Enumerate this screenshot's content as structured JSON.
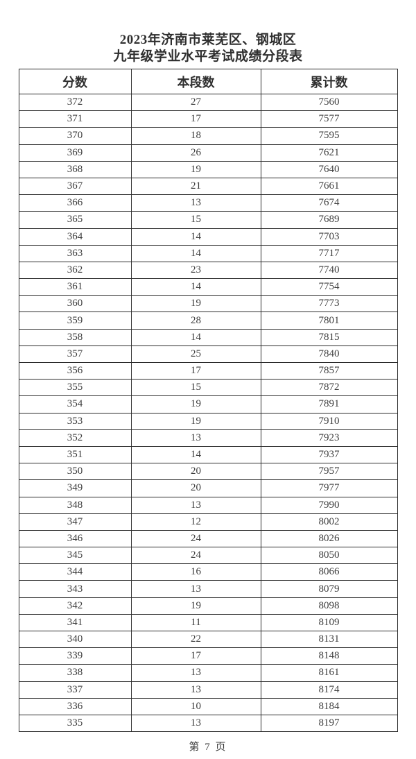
{
  "title": {
    "line1": "2023年济南市莱芜区、钢城区",
    "line2": "九年级学业水平考试成绩分段表"
  },
  "table": {
    "headers": [
      "分数",
      "本段数",
      "累计数"
    ],
    "rows": [
      [
        "372",
        "27",
        "7560"
      ],
      [
        "371",
        "17",
        "7577"
      ],
      [
        "370",
        "18",
        "7595"
      ],
      [
        "369",
        "26",
        "7621"
      ],
      [
        "368",
        "19",
        "7640"
      ],
      [
        "367",
        "21",
        "7661"
      ],
      [
        "366",
        "13",
        "7674"
      ],
      [
        "365",
        "15",
        "7689"
      ],
      [
        "364",
        "14",
        "7703"
      ],
      [
        "363",
        "14",
        "7717"
      ],
      [
        "362",
        "23",
        "7740"
      ],
      [
        "361",
        "14",
        "7754"
      ],
      [
        "360",
        "19",
        "7773"
      ],
      [
        "359",
        "28",
        "7801"
      ],
      [
        "358",
        "14",
        "7815"
      ],
      [
        "357",
        "25",
        "7840"
      ],
      [
        "356",
        "17",
        "7857"
      ],
      [
        "355",
        "15",
        "7872"
      ],
      [
        "354",
        "19",
        "7891"
      ],
      [
        "353",
        "19",
        "7910"
      ],
      [
        "352",
        "13",
        "7923"
      ],
      [
        "351",
        "14",
        "7937"
      ],
      [
        "350",
        "20",
        "7957"
      ],
      [
        "349",
        "20",
        "7977"
      ],
      [
        "348",
        "13",
        "7990"
      ],
      [
        "347",
        "12",
        "8002"
      ],
      [
        "346",
        "24",
        "8026"
      ],
      [
        "345",
        "24",
        "8050"
      ],
      [
        "344",
        "16",
        "8066"
      ],
      [
        "343",
        "13",
        "8079"
      ],
      [
        "342",
        "19",
        "8098"
      ],
      [
        "341",
        "11",
        "8109"
      ],
      [
        "340",
        "22",
        "8131"
      ],
      [
        "339",
        "17",
        "8148"
      ],
      [
        "338",
        "13",
        "8161"
      ],
      [
        "337",
        "13",
        "8174"
      ],
      [
        "336",
        "10",
        "8184"
      ],
      [
        "335",
        "13",
        "8197"
      ]
    ],
    "column_names": [
      "score",
      "segment-count",
      "cumulative-count"
    ]
  },
  "footer": {
    "page_label": "第 7 页"
  }
}
